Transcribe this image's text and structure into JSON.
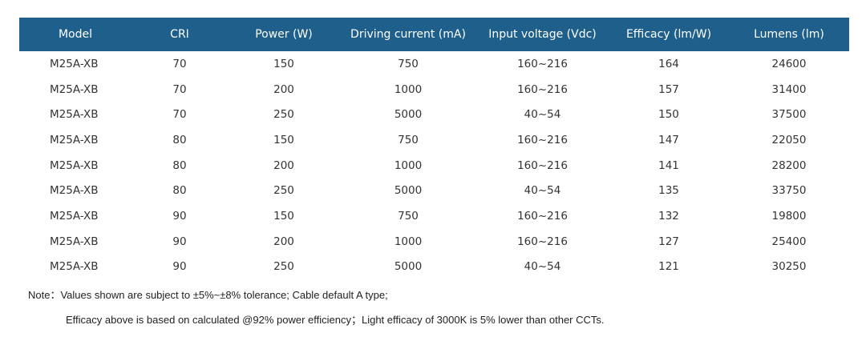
{
  "table": {
    "headers": [
      "Model",
      "CRI",
      "Power (W)",
      "Driving current (mA)",
      "Input voltage (Vdc)",
      "Efficacy (lm/W)",
      "Lumens (lm)"
    ],
    "rows": [
      [
        "M25A-XB",
        "70",
        "150",
        "750",
        "160~216",
        "164",
        "24600"
      ],
      [
        "M25A-XB",
        "70",
        "200",
        "1000",
        "160~216",
        "157",
        "31400"
      ],
      [
        "M25A-XB",
        "70",
        "250",
        "5000",
        "40~54",
        "150",
        "37500"
      ],
      [
        "M25A-XB",
        "80",
        "150",
        "750",
        "160~216",
        "147",
        "22050"
      ],
      [
        "M25A-XB",
        "80",
        "200",
        "1000",
        "160~216",
        "141",
        "28200"
      ],
      [
        "M25A-XB",
        "80",
        "250",
        "5000",
        "40~54",
        "135",
        "33750"
      ],
      [
        "M25A-XB",
        "90",
        "150",
        "750",
        "160~216",
        "132",
        "19800"
      ],
      [
        "M25A-XB",
        "90",
        "200",
        "1000",
        "160~216",
        "127",
        "25400"
      ],
      [
        "M25A-XB",
        "90",
        "250",
        "5000",
        "40~54",
        "121",
        "30250"
      ]
    ]
  },
  "notes": {
    "line1": "Note：Values shown are subject to  ±5%~±8% tolerance; Cable default A type;",
    "line2": "Efficacy above is based on calculated @92% power efficiency；Light efficacy of 3000K is 5% lower than other CCTs."
  },
  "colors": {
    "header_bg": "#1f5f8b",
    "header_text": "#ffffff",
    "body_text": "#333333"
  }
}
